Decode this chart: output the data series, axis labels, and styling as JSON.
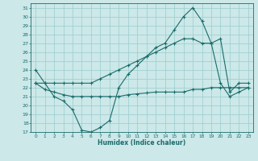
{
  "xlabel": "Humidex (Indice chaleur)",
  "bg_color": "#cce8e8",
  "grid_color": "#99cccc",
  "line_color": "#1a6b6b",
  "ylim": [
    17,
    31.5
  ],
  "xlim": [
    -0.5,
    23.5
  ],
  "yticks": [
    17,
    18,
    19,
    20,
    21,
    22,
    23,
    24,
    25,
    26,
    27,
    28,
    29,
    30,
    31
  ],
  "xticks": [
    0,
    1,
    2,
    3,
    4,
    5,
    6,
    7,
    8,
    9,
    10,
    11,
    12,
    13,
    14,
    15,
    16,
    17,
    18,
    19,
    20,
    21,
    22,
    23
  ],
  "series1_x": [
    0,
    1,
    2,
    3,
    4,
    5,
    6,
    7,
    8,
    9,
    10,
    11,
    12,
    13,
    14,
    15,
    16,
    17,
    18,
    19,
    20,
    21,
    22,
    23
  ],
  "series1_y": [
    24.0,
    22.5,
    21.0,
    20.5,
    19.5,
    17.2,
    17.0,
    17.5,
    18.3,
    22.0,
    23.5,
    24.5,
    25.5,
    26.5,
    27.0,
    28.5,
    30.0,
    31.0,
    29.5,
    27.0,
    22.5,
    21.0,
    21.5,
    22.0
  ],
  "series2_x": [
    0,
    1,
    2,
    3,
    4,
    5,
    6,
    7,
    8,
    9,
    10,
    11,
    12,
    13,
    14,
    15,
    16,
    17,
    18,
    19,
    20,
    21,
    22,
    23
  ],
  "series2_y": [
    22.5,
    22.5,
    22.5,
    22.5,
    22.5,
    22.5,
    22.5,
    23.0,
    23.5,
    24.0,
    24.5,
    25.0,
    25.5,
    26.0,
    26.5,
    27.0,
    27.5,
    27.5,
    27.0,
    27.0,
    27.5,
    21.5,
    22.5,
    22.5
  ],
  "series3_x": [
    0,
    1,
    2,
    3,
    4,
    5,
    6,
    7,
    8,
    9,
    10,
    11,
    12,
    13,
    14,
    15,
    16,
    17,
    18,
    19,
    20,
    21,
    22,
    23
  ],
  "series3_y": [
    22.5,
    21.8,
    21.5,
    21.2,
    21.0,
    21.0,
    21.0,
    21.0,
    21.0,
    21.0,
    21.2,
    21.3,
    21.4,
    21.5,
    21.5,
    21.5,
    21.5,
    21.8,
    21.8,
    22.0,
    22.0,
    22.0,
    22.0,
    22.0
  ]
}
